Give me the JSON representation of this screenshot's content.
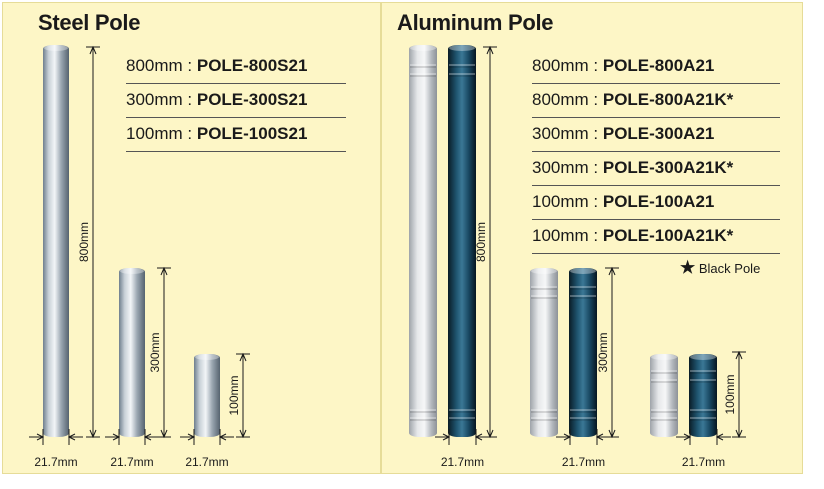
{
  "steel": {
    "title": "Steel Pole",
    "specs": [
      {
        "length": "800mm",
        "sep": " : ",
        "code": "POLE-800S21"
      },
      {
        "length": "300mm",
        "sep": " : ",
        "code": "POLE-300S21"
      },
      {
        "length": "100mm",
        "sep": " : ",
        "code": "POLE-100S21"
      }
    ],
    "heights": [
      "800mm",
      "300mm",
      "100mm"
    ],
    "widths": [
      "21.7mm",
      "21.7mm",
      "21.7mm"
    ]
  },
  "aluminum": {
    "title": "Aluminum Pole",
    "specs": [
      {
        "length": "800mm",
        "sep": " : ",
        "code": "POLE-800A21"
      },
      {
        "length": "800mm",
        "sep": " : ",
        "code": "POLE-800A21K*"
      },
      {
        "length": "300mm",
        "sep": " : ",
        "code": "POLE-300A21"
      },
      {
        "length": "300mm",
        "sep": " : ",
        "code": "POLE-300A21K*"
      },
      {
        "length": "100mm",
        "sep": " : ",
        "code": "POLE-100A21"
      },
      {
        "length": "100mm",
        "sep": " : ",
        "code": "POLE-100A21K*"
      }
    ],
    "note_star": "★",
    "note_text": "Black Pole",
    "heights": [
      "800mm",
      "300mm",
      "100mm"
    ],
    "widths": [
      "21.7mm",
      "21.7mm",
      "21.7mm"
    ]
  },
  "colors": {
    "panel_bg": "#fdf6c6",
    "silver_pole": "#b9bec4",
    "black_pole": "#123a4c",
    "line": "#1a1a1a"
  }
}
